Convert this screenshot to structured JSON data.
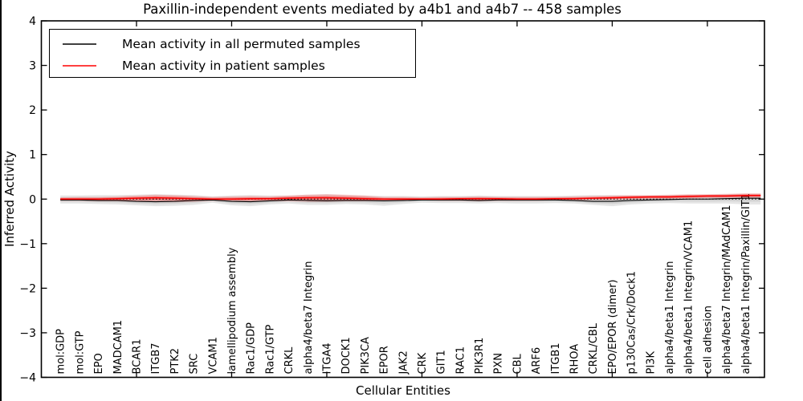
{
  "title": "Paxillin-independent events mediated by a4b1 and a4b7 -- 458 samples",
  "axes": {
    "ylabel": "Inferred Activity",
    "xlabel": "Cellular Entities"
  },
  "legend": {
    "items": [
      {
        "label": "Mean activity in all permuted samples",
        "color": "#000000"
      },
      {
        "label": "Mean activity in patient samples",
        "color": "#ff0000"
      }
    ]
  },
  "chart_data": {
    "type": "line",
    "title": "Paxillin-independent events mediated by a4b1 and a4b7 -- 458 samples",
    "xlabel": "Cellular Entities",
    "ylabel": "Inferred Activity",
    "ylim": [
      -4,
      4
    ],
    "ytick_labels": [
      "4",
      "3",
      "2",
      "1",
      "0",
      "−1",
      "−2",
      "−3",
      "−4"
    ],
    "xtick_indices": [
      4,
      9,
      14,
      19,
      24,
      29,
      34
    ],
    "grid": false,
    "legend_position": "upper left",
    "zero_reference_line": {
      "style": "dotted",
      "color": "#000000",
      "y": 0
    },
    "categories": [
      "mol:GDP",
      "mol:GTP",
      "EPO",
      "MADCAM1",
      "BCAR1",
      "ITGB7",
      "PTK2",
      "SRC",
      "VCAM1",
      "lamellipodium assembly",
      "Rac1/GDP",
      "Rac1/GTP",
      "CRKL",
      "alpha4/beta7 Integrin",
      "ITGA4",
      "DOCK1",
      "PIK3CA",
      "EPOR",
      "JAK2",
      "CRK",
      "GIT1",
      "RAC1",
      "PIK3R1",
      "PXN",
      "CBL",
      "ARF6",
      "ITGB1",
      "RHOA",
      "CRKL/CBL",
      "EPO/EPOR (dimer)",
      "p130Cas/Crk/Dock1",
      "PI3K",
      "alpha4/beta1 Integrin",
      "alpha4/beta1 Integrin/VCAM1",
      "cell adhesion",
      "alpha4/beta7 Integrin/MAdCAM1",
      "alpha4/beta1 Integrin/Paxillin/GIT1"
    ],
    "series": [
      {
        "name": "Mean activity in all permuted samples",
        "color": "#000000",
        "style": "solid",
        "values": [
          -0.02,
          -0.02,
          -0.03,
          -0.03,
          -0.05,
          -0.06,
          -0.05,
          -0.03,
          -0.02,
          -0.05,
          -0.06,
          -0.04,
          -0.02,
          -0.03,
          -0.04,
          -0.03,
          -0.03,
          -0.04,
          -0.03,
          -0.02,
          -0.02,
          -0.02,
          -0.03,
          -0.02,
          -0.02,
          -0.02,
          -0.02,
          -0.03,
          -0.05,
          -0.05,
          -0.03,
          -0.02,
          -0.01,
          0.0,
          0.0,
          0.01,
          0.02
        ]
      },
      {
        "name": "Mean activity in patient samples",
        "color": "#ff0000",
        "style": "solid",
        "values": [
          0.0,
          0.0,
          0.0,
          0.01,
          0.02,
          0.03,
          0.02,
          0.01,
          0.0,
          0.0,
          0.01,
          0.01,
          0.02,
          0.03,
          0.03,
          0.02,
          0.01,
          0.0,
          0.0,
          0.0,
          0.0,
          0.01,
          0.01,
          0.01,
          0.0,
          0.0,
          0.01,
          0.01,
          0.02,
          0.03,
          0.04,
          0.05,
          0.05,
          0.06,
          0.07,
          0.07,
          0.08
        ]
      }
    ],
    "bands": [
      {
        "name": "permuted samples activity range",
        "color": "rgba(0,0,0,0.10)",
        "inner_color": "rgba(0,0,0,0.08)",
        "low": [
          -0.1,
          -0.1,
          -0.11,
          -0.12,
          -0.14,
          -0.16,
          -0.15,
          -0.13,
          -0.08,
          -0.14,
          -0.16,
          -0.12,
          -0.1,
          -0.13,
          -0.13,
          -0.11,
          -0.12,
          -0.15,
          -0.11,
          -0.08,
          -0.09,
          -0.09,
          -0.1,
          -0.09,
          -0.1,
          -0.1,
          -0.09,
          -0.1,
          -0.13,
          -0.16,
          -0.12,
          -0.1,
          -0.09,
          -0.1,
          -0.1,
          -0.1,
          -0.12
        ],
        "high": [
          0.08,
          0.08,
          0.09,
          0.09,
          0.1,
          0.11,
          0.1,
          0.09,
          0.06,
          0.08,
          0.09,
          0.08,
          0.08,
          0.1,
          0.11,
          0.09,
          0.08,
          0.07,
          0.07,
          0.06,
          0.07,
          0.07,
          0.08,
          0.07,
          0.07,
          0.07,
          0.07,
          0.08,
          0.09,
          0.09,
          0.08,
          0.08,
          0.09,
          0.1,
          0.1,
          0.11,
          0.12
        ]
      },
      {
        "name": "patient samples activity range",
        "color": "rgba(255,0,0,0.18)",
        "inner_color": "rgba(255,0,0,0.28)",
        "low": [
          -0.04,
          -0.04,
          -0.05,
          -0.05,
          -0.06,
          -0.07,
          -0.07,
          -0.06,
          -0.04,
          -0.05,
          -0.06,
          -0.05,
          -0.05,
          -0.06,
          -0.06,
          -0.05,
          -0.05,
          -0.04,
          -0.04,
          -0.03,
          -0.04,
          -0.04,
          -0.05,
          -0.04,
          -0.04,
          -0.04,
          -0.03,
          -0.03,
          -0.02,
          -0.02,
          -0.01,
          0.0,
          0.0,
          0.01,
          0.02,
          0.02,
          0.03
        ],
        "high": [
          0.04,
          0.05,
          0.05,
          0.06,
          0.08,
          0.1,
          0.09,
          0.07,
          0.05,
          0.06,
          0.07,
          0.06,
          0.08,
          0.1,
          0.11,
          0.1,
          0.08,
          0.05,
          0.05,
          0.04,
          0.05,
          0.05,
          0.06,
          0.05,
          0.05,
          0.05,
          0.05,
          0.06,
          0.07,
          0.08,
          0.09,
          0.09,
          0.1,
          0.11,
          0.11,
          0.12,
          0.13
        ]
      }
    ]
  }
}
